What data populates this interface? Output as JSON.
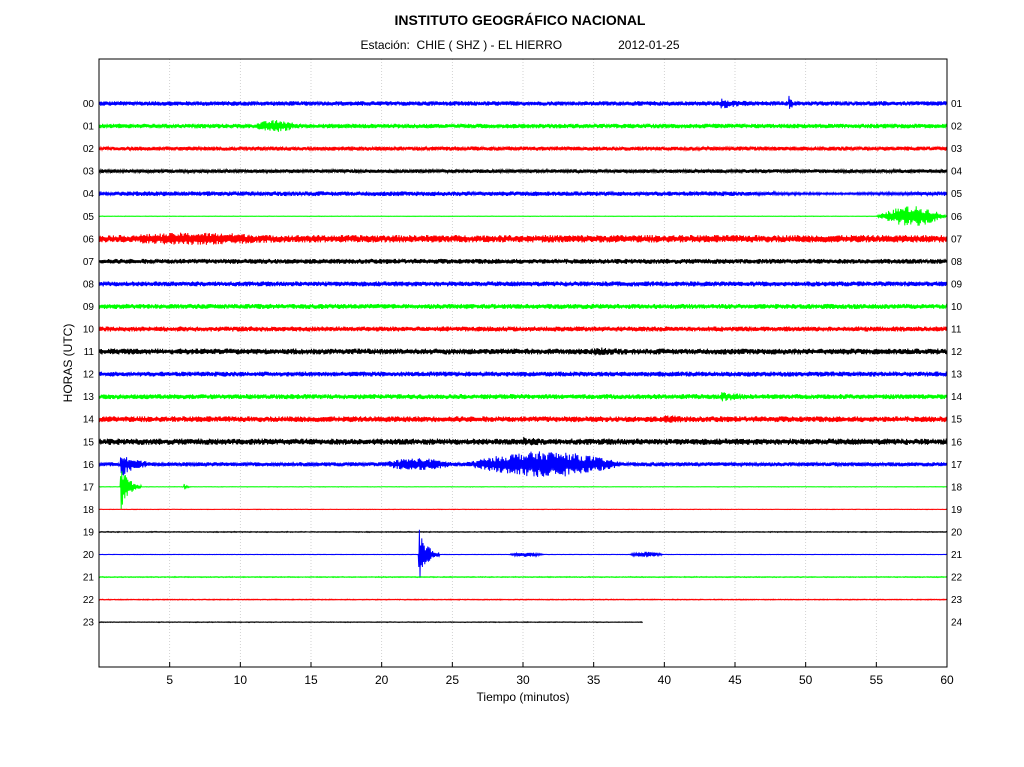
{
  "header": {
    "title": "INSTITUTO GEOGRÁFICO NACIONAL",
    "station_prefix": "Estación:",
    "station": "CHIE ( SHZ ) - EL HIERRO",
    "date": "2012-01-25"
  },
  "chart_data": {
    "type": "line",
    "title": "INSTITUTO GEOGRÁFICO NACIONAL",
    "xlabel": "Tiempo (minutos)",
    "ylabel": "HORAS (UTC)",
    "xlim": [
      0,
      60
    ],
    "xticks": [
      "5",
      "10",
      "15",
      "20",
      "25",
      "30",
      "35",
      "40",
      "45",
      "50",
      "55",
      "60"
    ],
    "grid": true,
    "colors": [
      "#0000ff",
      "#00ff00",
      "#ff0000",
      "#000000"
    ],
    "rows": [
      {
        "left_label": "00",
        "right_label": "01",
        "color": "#0000ff",
        "amplitude": 0.55,
        "end_minute": 60,
        "events": [
          {
            "minute": 44,
            "duration": 2,
            "amplitude": 1.0
          },
          {
            "minute": 48.8,
            "duration": 0.3,
            "amplitude": 5.0
          }
        ]
      },
      {
        "left_label": "01",
        "right_label": "02",
        "color": "#00ff00",
        "amplitude": 0.55,
        "end_minute": 60,
        "events": [
          {
            "minute": 11,
            "duration": 3,
            "amplitude": 0.9
          }
        ]
      },
      {
        "left_label": "02",
        "right_label": "03",
        "color": "#ff0000",
        "amplitude": 0.5,
        "end_minute": 60,
        "events": []
      },
      {
        "left_label": "03",
        "right_label": "04",
        "color": "#000000",
        "amplitude": 0.45,
        "end_minute": 60,
        "events": []
      },
      {
        "left_label": "04",
        "right_label": "05",
        "color": "#0000ff",
        "amplitude": 0.55,
        "end_minute": 60,
        "events": [
          {
            "minute": 45,
            "duration": 15,
            "amplitude": -0.3
          }
        ]
      },
      {
        "left_label": "05",
        "right_label": "06",
        "color": "#00ff00",
        "amplitude": 0.05,
        "end_minute": 60,
        "events": [
          {
            "minute": 55,
            "duration": 5,
            "amplitude": 2.4
          }
        ]
      },
      {
        "left_label": "06",
        "right_label": "07",
        "color": "#ff0000",
        "amplitude": 0.9,
        "end_minute": 60,
        "events": [
          {
            "minute": 2,
            "duration": 10,
            "amplitude": 0.6
          }
        ]
      },
      {
        "left_label": "07",
        "right_label": "08",
        "color": "#000000",
        "amplitude": 0.6,
        "end_minute": 60,
        "events": []
      },
      {
        "left_label": "08",
        "right_label": "09",
        "color": "#0000ff",
        "amplitude": 0.6,
        "end_minute": 60,
        "events": []
      },
      {
        "left_label": "09",
        "right_label": "10",
        "color": "#00ff00",
        "amplitude": 0.6,
        "end_minute": 60,
        "events": []
      },
      {
        "left_label": "10",
        "right_label": "11",
        "color": "#ff0000",
        "amplitude": 0.6,
        "end_minute": 60,
        "events": []
      },
      {
        "left_label": "11",
        "right_label": "12",
        "color": "#000000",
        "amplitude": 0.7,
        "end_minute": 60,
        "events": [
          {
            "minute": 35,
            "duration": 2,
            "amplitude": 0.6
          }
        ]
      },
      {
        "left_label": "12",
        "right_label": "13",
        "color": "#0000ff",
        "amplitude": 0.6,
        "end_minute": 60,
        "events": []
      },
      {
        "left_label": "13",
        "right_label": "14",
        "color": "#00ff00",
        "amplitude": 0.6,
        "end_minute": 60,
        "events": [
          {
            "minute": 44,
            "duration": 2,
            "amplitude": 0.8
          }
        ]
      },
      {
        "left_label": "14",
        "right_label": "15",
        "color": "#ff0000",
        "amplitude": 0.7,
        "end_minute": 60,
        "events": [
          {
            "minute": 40,
            "duration": 1.5,
            "amplitude": 0.6
          }
        ]
      },
      {
        "left_label": "15",
        "right_label": "16",
        "color": "#000000",
        "amplitude": 0.75,
        "end_minute": 60,
        "events": [
          {
            "minute": 30,
            "duration": 1.5,
            "amplitude": 0.6
          }
        ]
      },
      {
        "left_label": "16",
        "right_label": "17",
        "color": "#0000ff",
        "amplitude": 0.5,
        "end_minute": 60,
        "events": [
          {
            "minute": 1.5,
            "duration": 2,
            "amplitude": 3.0
          },
          {
            "minute": 20,
            "duration": 5,
            "amplitude": 1.0
          },
          {
            "minute": 26,
            "duration": 11,
            "amplitude": 2.6
          }
        ]
      },
      {
        "left_label": "17",
        "right_label": "18",
        "color": "#00ff00",
        "amplitude": 0.05,
        "end_minute": 60,
        "events": [
          {
            "minute": 1.5,
            "duration": 1.5,
            "amplitude": 6.0
          },
          {
            "minute": 6.0,
            "duration": 0.5,
            "amplitude": 0.8
          }
        ]
      },
      {
        "left_label": "18",
        "right_label": "19",
        "color": "#ff0000",
        "amplitude": 0.05,
        "end_minute": 60,
        "events": []
      },
      {
        "left_label": "19",
        "right_label": "20",
        "color": "#000000",
        "amplitude": 0.1,
        "end_minute": 60,
        "events": []
      },
      {
        "left_label": "20",
        "right_label": "21",
        "color": "#0000ff",
        "amplitude": 0.05,
        "end_minute": 60,
        "events": [
          {
            "minute": 22.6,
            "duration": 1.5,
            "amplitude": 7.0
          },
          {
            "minute": 29,
            "duration": 2.5,
            "amplitude": 0.5
          },
          {
            "minute": 37.5,
            "duration": 2.5,
            "amplitude": 0.6
          }
        ]
      },
      {
        "left_label": "21",
        "right_label": "22",
        "color": "#00ff00",
        "amplitude": 0.1,
        "end_minute": 60,
        "events": []
      },
      {
        "left_label": "22",
        "right_label": "23",
        "color": "#ff0000",
        "amplitude": 0.1,
        "end_minute": 60,
        "events": []
      },
      {
        "left_label": "23",
        "right_label": "24",
        "color": "#000000",
        "amplitude": 0.08,
        "end_minute": 38.5,
        "events": []
      }
    ]
  }
}
